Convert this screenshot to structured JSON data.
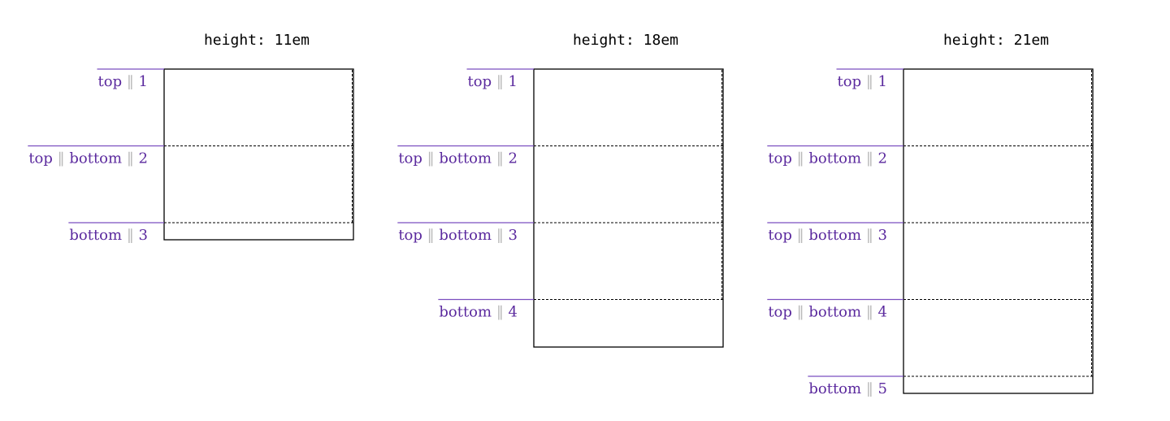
{
  "colors": {
    "label": "#5b2a9e",
    "separator": "#b9b9b9",
    "line": "#000000",
    "rule": "#7b4fc0"
  },
  "diagrams": [
    {
      "title": "height: 11em",
      "lines": [
        {
          "parts": [
            "top"
          ],
          "num": "1"
        },
        {
          "parts": [
            "top",
            "bottom"
          ],
          "num": "2"
        },
        {
          "parts": [
            "bottom"
          ],
          "num": "3"
        }
      ]
    },
    {
      "title": "height: 18em",
      "lines": [
        {
          "parts": [
            "top"
          ],
          "num": "1"
        },
        {
          "parts": [
            "top",
            "bottom"
          ],
          "num": "2"
        },
        {
          "parts": [
            "top",
            "bottom"
          ],
          "num": "3"
        },
        {
          "parts": [
            "bottom"
          ],
          "num": "4"
        }
      ]
    },
    {
      "title": "height: 21em",
      "lines": [
        {
          "parts": [
            "top"
          ],
          "num": "1"
        },
        {
          "parts": [
            "top",
            "bottom"
          ],
          "num": "2"
        },
        {
          "parts": [
            "top",
            "bottom"
          ],
          "num": "3"
        },
        {
          "parts": [
            "top",
            "bottom"
          ],
          "num": "4"
        },
        {
          "parts": [
            "bottom"
          ],
          "num": "5"
        }
      ]
    }
  ]
}
